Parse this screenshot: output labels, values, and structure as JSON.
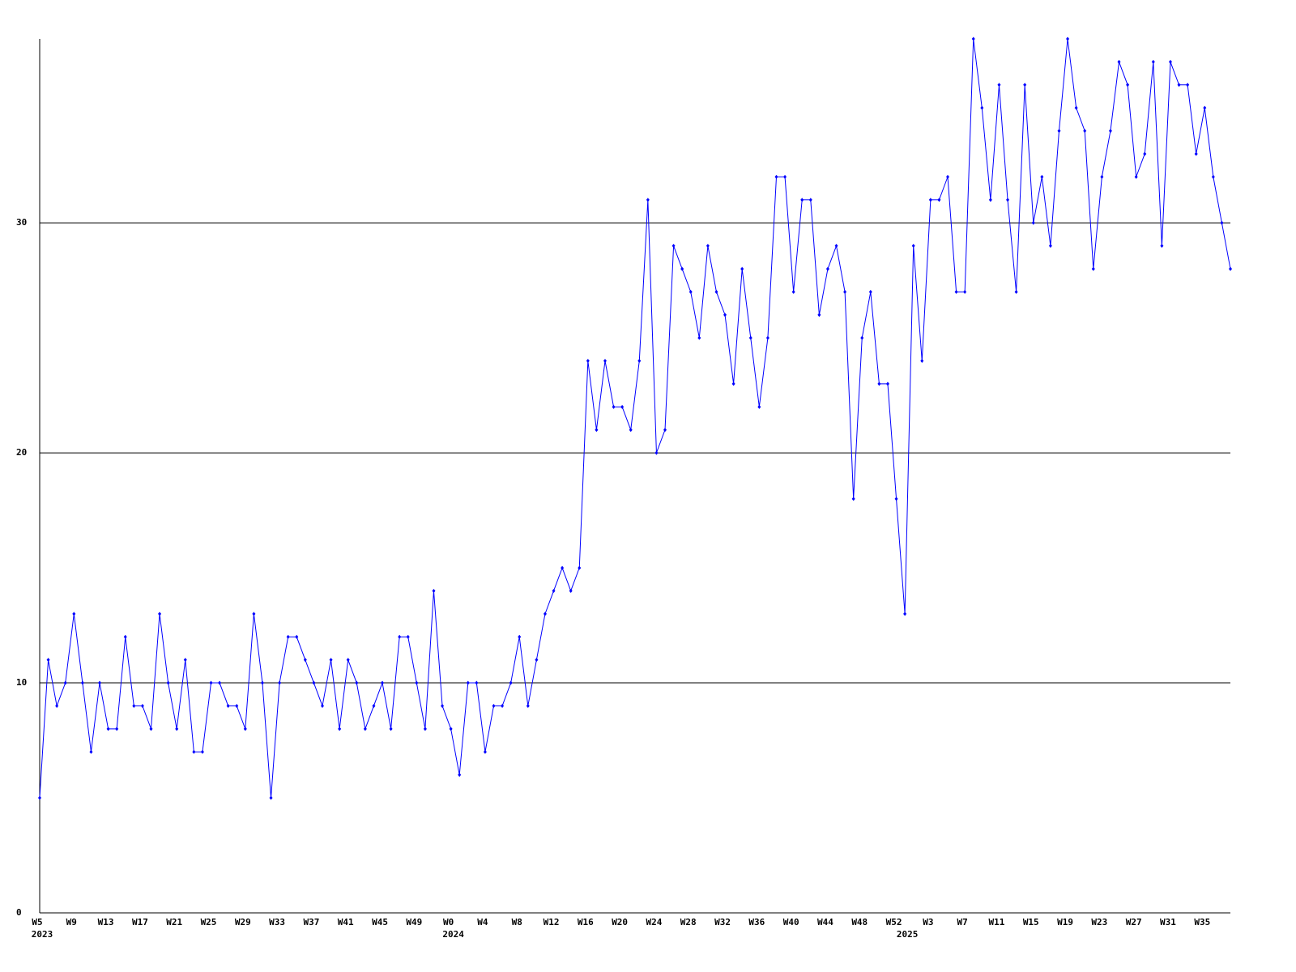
{
  "chart_data": {
    "type": "line",
    "categories": [
      "W5",
      null,
      null,
      null,
      "W9",
      null,
      null,
      null,
      "W13",
      null,
      null,
      null,
      "W17",
      null,
      null,
      null,
      "W21",
      null,
      null,
      null,
      "W25",
      null,
      null,
      null,
      "W29",
      null,
      null,
      null,
      "W33",
      null,
      null,
      null,
      "W37",
      null,
      null,
      null,
      "W41",
      null,
      null,
      null,
      "W45",
      null,
      null,
      null,
      "W49",
      null,
      null,
      null,
      "W0",
      null,
      null,
      null,
      "W4",
      null,
      null,
      null,
      "W8",
      null,
      null,
      null,
      "W12",
      null,
      null,
      null,
      "W16",
      null,
      null,
      null,
      "W20",
      null,
      null,
      null,
      "W24",
      null,
      null,
      null,
      "W28",
      null,
      null,
      null,
      "W32",
      null,
      null,
      null,
      "W36",
      null,
      null,
      null,
      "W40",
      null,
      null,
      null,
      "W44",
      null,
      null,
      null,
      "W48",
      null,
      null,
      null,
      "W52",
      null,
      null,
      null,
      "W3",
      null,
      null,
      null,
      "W7",
      null,
      null,
      null,
      "W11",
      null,
      null,
      null,
      "W15",
      null,
      null,
      null,
      "W19",
      null,
      null,
      null,
      "W23",
      null,
      null,
      null,
      "W27",
      null,
      null,
      null,
      "W31",
      null,
      null,
      null,
      "W35",
      null,
      null,
      null
    ],
    "year_labels": [
      "2023",
      null,
      null,
      null,
      null,
      null,
      null,
      null,
      null,
      null,
      null,
      null,
      null,
      null,
      null,
      null,
      null,
      null,
      null,
      null,
      null,
      null,
      null,
      null,
      null,
      null,
      null,
      null,
      null,
      null,
      null,
      null,
      null,
      null,
      null,
      null,
      null,
      null,
      null,
      null,
      null,
      null,
      null,
      null,
      null,
      null,
      null,
      null,
      "2024",
      null,
      null,
      null,
      null,
      null,
      null,
      null,
      null,
      null,
      null,
      null,
      null,
      null,
      null,
      null,
      null,
      null,
      null,
      null,
      null,
      null,
      null,
      null,
      null,
      null,
      null,
      null,
      null,
      null,
      null,
      null,
      null,
      null,
      null,
      null,
      null,
      null,
      null,
      null,
      null,
      null,
      null,
      null,
      null,
      null,
      null,
      null,
      null,
      null,
      null,
      null,
      null,
      "2025",
      null,
      null,
      null,
      null,
      null,
      null,
      null,
      null,
      null,
      null,
      null,
      null,
      null,
      null,
      null,
      null,
      null,
      null,
      null,
      null,
      null,
      null,
      null,
      null,
      null,
      null,
      null,
      null,
      null,
      null,
      null,
      null,
      null,
      null,
      null,
      null,
      null
    ],
    "series": [
      {
        "color": "#0000ff",
        "values": [
          5,
          11,
          9,
          10,
          13,
          10,
          7,
          10,
          8,
          8,
          12,
          9,
          9,
          8,
          13,
          10,
          8,
          11,
          7,
          7,
          10,
          10,
          9,
          9,
          8,
          13,
          10,
          5,
          10,
          12,
          12,
          11,
          10,
          9,
          11,
          8,
          11,
          10,
          8,
          9,
          10,
          8,
          12,
          12,
          10,
          8,
          14,
          9,
          8,
          6,
          10,
          10,
          7,
          9,
          9,
          10,
          12,
          9,
          11,
          13,
          14,
          15,
          14,
          15,
          24,
          21,
          24,
          22,
          22,
          21,
          24,
          31,
          20,
          21,
          29,
          28,
          27,
          25,
          29,
          27,
          26,
          23,
          28,
          25,
          22,
          25,
          32,
          32,
          27,
          31,
          31,
          26,
          28,
          29,
          27,
          18,
          25,
          27,
          23,
          23,
          18,
          13,
          29,
          24,
          31,
          31,
          32,
          27,
          27,
          38,
          35,
          31,
          36,
          31,
          27,
          36,
          30,
          32,
          29,
          34,
          38,
          35,
          34,
          28,
          32,
          34,
          37,
          36,
          32,
          33,
          37,
          29,
          37,
          36,
          36,
          33,
          35,
          32,
          30,
          28
        ]
      }
    ],
    "ylim": [
      0,
      38
    ],
    "yticks": [
      0,
      10,
      20,
      30
    ],
    "grid": true
  }
}
